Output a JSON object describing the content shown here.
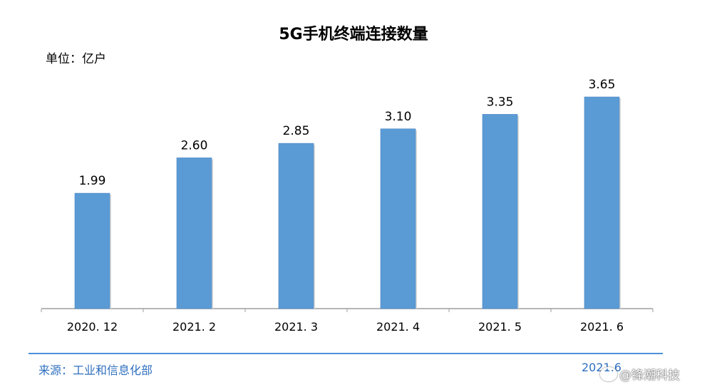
{
  "title": "5G手机终端连接数量",
  "unit": "单位：亿户",
  "source": "来源：工业和信息化部",
  "date": "2021.6",
  "watermark": "@锋潮科技",
  "colors": {
    "bar": "#5b9bd5",
    "bar_edge": "#4a86c4",
    "footer": "#4a90d9",
    "source_text": "#2f6fbf"
  },
  "chart_data": {
    "type": "bar",
    "title": "5G手机终端连接数量",
    "ylabel": "单位：亿户",
    "categories": [
      "2020. 12",
      "2021. 2",
      "2021. 3",
      "2021. 4",
      "2021. 5",
      "2021. 6"
    ],
    "values": [
      1.99,
      2.6,
      2.85,
      3.1,
      3.35,
      3.65
    ],
    "data_labels": [
      "1.99",
      "2.60",
      "2.85",
      "3.10",
      "3.35",
      "3.65"
    ],
    "ylim": [
      0,
      3.65
    ],
    "grid": false,
    "legend": "none"
  }
}
